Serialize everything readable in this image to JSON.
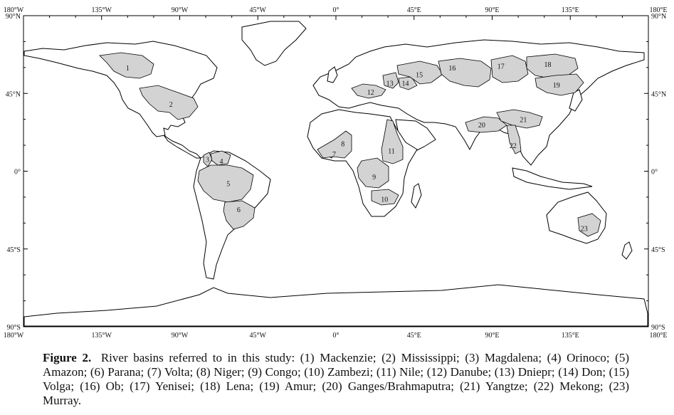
{
  "map": {
    "lon_range": [
      -180,
      180
    ],
    "lat_range": [
      -90,
      90
    ],
    "x_tick_labels": [
      "180°W",
      "135°W",
      "90°W",
      "45°W",
      "0°",
      "45°E",
      "90°E",
      "135°E",
      "180°E"
    ],
    "y_tick_labels": [
      "90°N",
      "45°N",
      "0°",
      "45°S",
      "90°S"
    ],
    "basin_fill": "#d3d3d3",
    "basins": [
      {
        "id": "1",
        "name": "Mackenzie",
        "lon": -120,
        "lat": 60
      },
      {
        "id": "2",
        "name": "Mississippi",
        "lon": -95,
        "lat": 39
      },
      {
        "id": "3",
        "name": "Magdalena",
        "lon": -74,
        "lat": 7
      },
      {
        "id": "4",
        "name": "Orinoco",
        "lon": -66,
        "lat": 6
      },
      {
        "id": "5",
        "name": "Amazon",
        "lon": -62,
        "lat": -7
      },
      {
        "id": "6",
        "name": "Parana",
        "lon": -56,
        "lat": -22
      },
      {
        "id": "7",
        "name": "Volta",
        "lon": -1,
        "lat": 10
      },
      {
        "id": "8",
        "name": "Niger",
        "lon": 4,
        "lat": 16
      },
      {
        "id": "9",
        "name": "Congo",
        "lon": 22,
        "lat": -3
      },
      {
        "id": "10",
        "name": "Zambezi",
        "lon": 28,
        "lat": -16
      },
      {
        "id": "11",
        "name": "Nile",
        "lon": 32,
        "lat": 12
      },
      {
        "id": "12",
        "name": "Danube",
        "lon": 20,
        "lat": 46
      },
      {
        "id": "13",
        "name": "Dniepr",
        "lon": 31,
        "lat": 51
      },
      {
        "id": "14",
        "name": "Don",
        "lon": 40,
        "lat": 51
      },
      {
        "id": "15",
        "name": "Volga",
        "lon": 48,
        "lat": 56
      },
      {
        "id": "16",
        "name": "Ob",
        "lon": 67,
        "lat": 60
      },
      {
        "id": "17",
        "name": "Yenisei",
        "lon": 95,
        "lat": 61
      },
      {
        "id": "18",
        "name": "Lena",
        "lon": 122,
        "lat": 62
      },
      {
        "id": "19",
        "name": "Amur",
        "lon": 127,
        "lat": 50
      },
      {
        "id": "20",
        "name": "Ganges/Brahmaputra",
        "lon": 84,
        "lat": 27
      },
      {
        "id": "21",
        "name": "Yangtze",
        "lon": 108,
        "lat": 30
      },
      {
        "id": "22",
        "name": "Mekong",
        "lon": 102,
        "lat": 15
      },
      {
        "id": "23",
        "name": "Murray",
        "lon": 143,
        "lat": -33
      }
    ]
  },
  "caption": {
    "label": "Figure 2.",
    "text": "River basins referred to in this study: (1) Mackenzie; (2) Mississippi; (3) Magdalena; (4) Orinoco; (5) Amazon; (6) Parana; (7) Volta; (8) Niger; (9) Congo; (10) Zambezi; (11) Nile; (12) Danube; (13) Dniepr; (14) Don; (15) Volga; (16) Ob; (17) Yenisei; (18) Lena; (19) Amur; (20) Ganges/Brahmaputra; (21) Yangtze; (22) Mekong; (23) Murray."
  }
}
